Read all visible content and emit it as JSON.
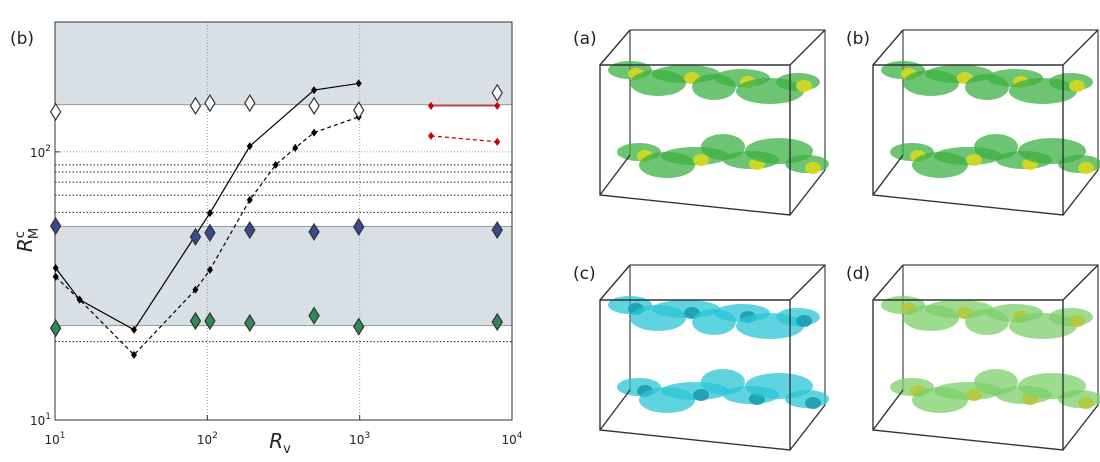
{
  "chart_data": {
    "type": "line",
    "panel_label": "(b)",
    "xlabel": {
      "text": "R",
      "sub": "v"
    },
    "ylabel": {
      "text": "R",
      "sup": "c",
      "sub": "M"
    },
    "xscale": "log",
    "yscale": "log",
    "grid": true,
    "xlim": [
      10,
      10000
    ],
    "ylim": [
      10,
      305
    ],
    "xticks": [
      {
        "value": 10,
        "label": "10",
        "exponent": "1"
      },
      {
        "value": 100,
        "label": "10",
        "exponent": "2"
      },
      {
        "value": 1000,
        "label": "10",
        "exponent": "3"
      },
      {
        "value": 10000,
        "label": "10",
        "exponent": "4"
      }
    ],
    "yticks": [
      {
        "value": 10,
        "label": "10",
        "exponent": "1"
      },
      {
        "value": 100,
        "label": "10",
        "exponent": "2"
      }
    ],
    "bands": [
      [
        150,
        305
      ],
      [
        22.5,
        52.7
      ]
    ],
    "hlines": [
      89.4,
      84.1,
      77.1,
      68.9,
      59.5,
      19.6
    ],
    "series": [
      {
        "color": "#000000",
        "line": "solid",
        "marker": "dot",
        "x": [
          10.1,
          14.5,
          33,
          104,
          190,
          502,
          986
        ],
        "values": [
          36.9,
          28.1,
          21.7,
          59.1,
          105,
          170,
          180
        ]
      },
      {
        "color": "#000000",
        "line": "dashed",
        "marker": "dot",
        "x": [
          10.1,
          14.5,
          33,
          83.6,
          104,
          190,
          281,
          378,
          502,
          986
        ],
        "values": [
          34.2,
          28.1,
          17.5,
          30.6,
          36.3,
          66.2,
          89.4,
          103.5,
          118,
          135
        ]
      },
      {
        "color": "#cc0000",
        "line": "solid",
        "marker": "dot",
        "x": [
          2940,
          8000
        ],
        "values": [
          148.5,
          148.5
        ]
      },
      {
        "color": "#cc0000",
        "line": "dashed",
        "marker": "dot",
        "x": [
          2940,
          8000
        ],
        "values": [
          114.7,
          109
        ]
      },
      {
        "color": "#ffffff",
        "line": "none",
        "marker": "diamond",
        "x": [
          10.1,
          83.6,
          104,
          190,
          502,
          986,
          8000
        ],
        "values": [
          141,
          148.5,
          152,
          152,
          148.5,
          143,
          166
        ]
      },
      {
        "color": "#3b4a8c",
        "line": "none",
        "marker": "diamond",
        "x": [
          10.1,
          83.6,
          104,
          190,
          502,
          986,
          8000
        ],
        "values": [
          52.9,
          48.2,
          49.9,
          51.1,
          50.3,
          52.5,
          51.1
        ]
      },
      {
        "color": "#2e8b57",
        "line": "none",
        "marker": "diamond",
        "x": [
          10.1,
          83.6,
          104,
          190,
          502,
          986,
          8000
        ],
        "values": [
          22,
          23.4,
          23.4,
          23,
          24.5,
          22.3,
          23.2
        ]
      }
    ]
  },
  "panels": [
    {
      "label": "(a)"
    },
    {
      "label": "(b)"
    },
    {
      "label": "(c)"
    },
    {
      "label": "(d)"
    }
  ]
}
